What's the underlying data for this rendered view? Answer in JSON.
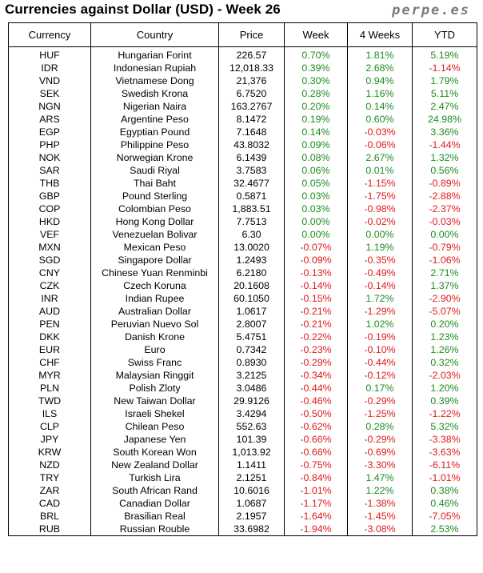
{
  "header": {
    "title": "Currencies against Dollar (USD) - Week 26",
    "brand": "perpe.es"
  },
  "colors": {
    "positive": "#1e8c1e",
    "negative": "#e01b1b"
  },
  "table": {
    "columns": [
      "Currency",
      "Country",
      "Price",
      "Week",
      "4 Weeks",
      "YTD"
    ],
    "rows": [
      [
        "HUF",
        "Hungarian Forint",
        "226.57",
        "0.70%",
        "1.81%",
        "5.19%"
      ],
      [
        "IDR",
        "Indonesian Rupiah",
        "12,018.33",
        "0.39%",
        "2.68%",
        "-1.14%"
      ],
      [
        "VND",
        "Vietnamese Dong",
        "21,376",
        "0.30%",
        "0.94%",
        "1.79%"
      ],
      [
        "SEK",
        "Swedish Krona",
        "6.7520",
        "0.28%",
        "1.16%",
        "5.11%"
      ],
      [
        "NGN",
        "Nigerian Naira",
        "163.2767",
        "0.20%",
        "0.14%",
        "2.47%"
      ],
      [
        "ARS",
        "Argentine Peso",
        "8.1472",
        "0.19%",
        "0.60%",
        "24.98%"
      ],
      [
        "EGP",
        "Egyptian Pound",
        "7.1648",
        "0.14%",
        "-0.03%",
        "3.36%"
      ],
      [
        "PHP",
        "Philippine Peso",
        "43.8032",
        "0.09%",
        "-0.06%",
        "-1.44%"
      ],
      [
        "NOK",
        "Norwegian Krone",
        "6.1439",
        "0.08%",
        "2.67%",
        "1.32%"
      ],
      [
        "SAR",
        "Saudi Riyal",
        "3.7583",
        "0.06%",
        "0.01%",
        "0.56%"
      ],
      [
        "THB",
        "Thai Baht",
        "32.4677",
        "0.05%",
        "-1.15%",
        "-0.89%"
      ],
      [
        "GBP",
        "Pound Sterling",
        "0.5871",
        "0.03%",
        "-1.75%",
        "-2.88%"
      ],
      [
        "COP",
        "Colombian Peso",
        "1,883.51",
        "0.03%",
        "-0.98%",
        "-2.37%"
      ],
      [
        "HKD",
        "Hong Kong Dollar",
        "7.7513",
        "0.00%",
        "-0.02%",
        "-0.03%"
      ],
      [
        "VEF",
        "Venezuelan Bolivar",
        "6.30",
        "0.00%",
        "0.00%",
        "0.00%"
      ],
      [
        "MXN",
        "Mexican Peso",
        "13.0020",
        "-0.07%",
        "1.19%",
        "-0.79%"
      ],
      [
        "SGD",
        "Singapore Dollar",
        "1.2493",
        "-0.09%",
        "-0.35%",
        "-1.06%"
      ],
      [
        "CNY",
        "Chinese Yuan Renminbi",
        "6.2180",
        "-0.13%",
        "-0.49%",
        "2.71%"
      ],
      [
        "CZK",
        "Czech Koruna",
        "20.1608",
        "-0.14%",
        "-0.14%",
        "1.37%"
      ],
      [
        "INR",
        "Indian Rupee",
        "60.1050",
        "-0.15%",
        "1.72%",
        "-2.90%"
      ],
      [
        "AUD",
        "Australian Dollar",
        "1.0617",
        "-0.21%",
        "-1.29%",
        "-5.07%"
      ],
      [
        "PEN",
        "Peruvian Nuevo Sol",
        "2.8007",
        "-0.21%",
        "1.02%",
        "0.20%"
      ],
      [
        "DKK",
        "Danish Krone",
        "5.4751",
        "-0.22%",
        "-0.19%",
        "1.23%"
      ],
      [
        "EUR",
        "Euro",
        "0.7342",
        "-0.23%",
        "-0.10%",
        "1.26%"
      ],
      [
        "CHF",
        "Swiss Franc",
        "0.8930",
        "-0.29%",
        "-0.44%",
        "0.32%"
      ],
      [
        "MYR",
        "Malaysian Ringgit",
        "3.2125",
        "-0.34%",
        "-0.12%",
        "-2.03%"
      ],
      [
        "PLN",
        "Polish Zloty",
        "3.0486",
        "-0.44%",
        "0.17%",
        "1.20%"
      ],
      [
        "TWD",
        "New Taiwan Dollar",
        "29.9126",
        "-0.46%",
        "-0.29%",
        "0.39%"
      ],
      [
        "ILS",
        "Israeli Shekel",
        "3.4294",
        "-0.50%",
        "-1.25%",
        "-1.22%"
      ],
      [
        "CLP",
        "Chilean Peso",
        "552.63",
        "-0.62%",
        "0.28%",
        "5.32%"
      ],
      [
        "JPY",
        "Japanese Yen",
        "101.39",
        "-0.66%",
        "-0.29%",
        "-3.38%"
      ],
      [
        "KRW",
        "South Korean Won",
        "1,013.92",
        "-0.66%",
        "-0.69%",
        "-3.63%"
      ],
      [
        "NZD",
        "New Zealand Dollar",
        "1.1411",
        "-0.75%",
        "-3.30%",
        "-6.11%"
      ],
      [
        "TRY",
        "Turkish Lira",
        "2.1251",
        "-0.84%",
        "1.47%",
        "-1.01%"
      ],
      [
        "ZAR",
        "South African Rand",
        "10.6016",
        "-1.01%",
        "1.22%",
        "0.38%"
      ],
      [
        "CAD",
        "Canadian Dollar",
        "1.0687",
        "-1.17%",
        "-1.38%",
        "0.46%"
      ],
      [
        "BRL",
        "Brasilian Real",
        "2.1957",
        "-1.64%",
        "-1.45%",
        "-7.05%"
      ],
      [
        "RUB",
        "Russian Rouble",
        "33.6982",
        "-1.94%",
        "-3.08%",
        "2.53%"
      ]
    ]
  }
}
